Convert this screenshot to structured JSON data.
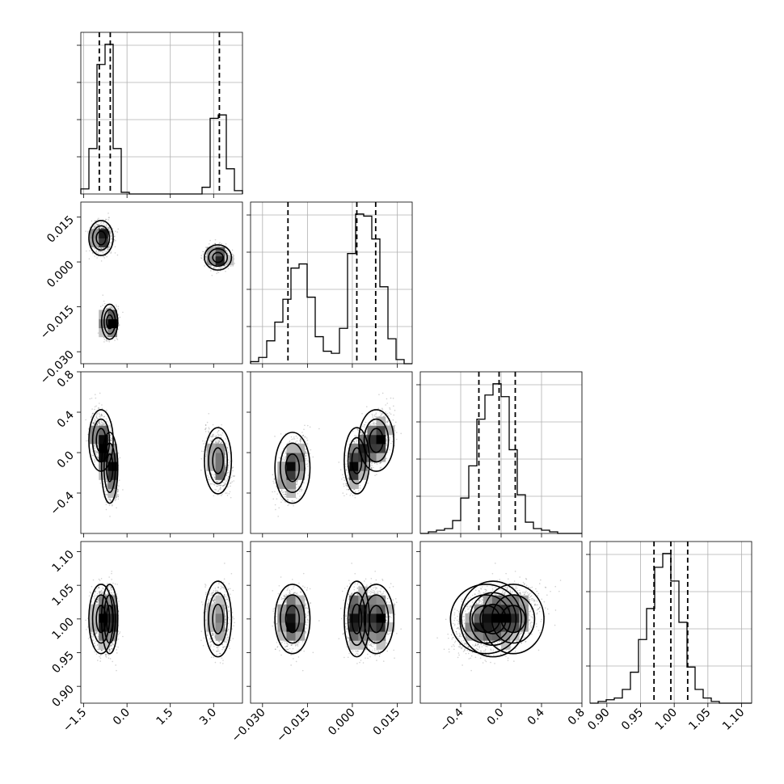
{
  "chart_data": {
    "type": "corner",
    "parameters": 4,
    "axes": [
      {
        "range": [
          -1.6,
          4.0
        ],
        "ticks": [
          -1.5,
          0.0,
          1.5,
          3.0
        ],
        "tick_labels": [
          "−1.5",
          "0.0",
          "1.5",
          "3.0"
        ]
      },
      {
        "range": [
          -0.034,
          0.02
        ],
        "ticks": [
          -0.03,
          -0.015,
          0.0,
          0.015
        ],
        "tick_labels": [
          "−0.030",
          "−0.015",
          "0.000",
          "0.015"
        ]
      },
      {
        "range": [
          -0.8,
          0.8
        ],
        "ticks": [
          -0.4,
          0.0,
          0.4,
          0.8
        ],
        "tick_labels": [
          "−0.4",
          "0.0",
          "0.4",
          "0.8"
        ]
      },
      {
        "range": [
          0.875,
          1.115
        ],
        "ticks": [
          0.9,
          0.95,
          1.0,
          1.05,
          1.1
        ],
        "tick_labels": [
          "0.90",
          "0.95",
          "1.00",
          "1.05",
          "1.10"
        ]
      }
    ],
    "histograms": [
      {
        "edges": [
          -1.6,
          -1.32,
          -1.04,
          -0.76,
          -0.48,
          -0.2,
          0.08,
          0.36,
          0.64,
          0.92,
          1.2,
          1.48,
          1.76,
          2.04,
          2.32,
          2.6,
          2.88,
          3.16,
          3.44,
          3.72,
          4.0
        ],
        "counts": [
          0.03,
          0.27,
          0.77,
          0.89,
          0.27,
          0.01,
          0.0,
          0.0,
          0.0,
          0.0,
          0.0,
          0.0,
          0.0,
          0.0,
          0.0,
          0.04,
          0.45,
          0.47,
          0.15,
          0.02
        ],
        "quantiles": [
          -0.96,
          -0.58,
          3.2
        ]
      },
      {
        "edges": [
          -0.034,
          -0.0313,
          -0.0286,
          -0.0259,
          -0.0232,
          -0.0205,
          -0.0178,
          -0.0151,
          -0.0124,
          -0.0097,
          -0.007,
          -0.0043,
          -0.0016,
          0.0011,
          0.0038,
          0.0065,
          0.0092,
          0.0119,
          0.0146,
          0.0173,
          0.02
        ],
        "counts": [
          0.01,
          0.03,
          0.11,
          0.2,
          0.31,
          0.46,
          0.48,
          0.32,
          0.13,
          0.06,
          0.05,
          0.17,
          0.53,
          0.72,
          0.71,
          0.6,
          0.37,
          0.12,
          0.02,
          0.0
        ],
        "quantiles": [
          -0.0215,
          0.0015,
          0.0078
        ]
      },
      {
        "edges": [
          -0.8,
          -0.72,
          -0.64,
          -0.56,
          -0.48,
          -0.4,
          -0.32,
          -0.24,
          -0.16,
          -0.08,
          0.0,
          0.08,
          0.16,
          0.24,
          0.32,
          0.4,
          0.48,
          0.56,
          0.64,
          0.72,
          0.8
        ],
        "counts": [
          0.0,
          0.01,
          0.02,
          0.03,
          0.08,
          0.22,
          0.42,
          0.71,
          0.86,
          0.93,
          0.85,
          0.52,
          0.24,
          0.07,
          0.03,
          0.02,
          0.01,
          0.0,
          0.0,
          0.0
        ],
        "quantiles": [
          -0.22,
          -0.02,
          0.14
        ]
      },
      {
        "edges": [
          0.875,
          0.887,
          0.899,
          0.911,
          0.923,
          0.935,
          0.947,
          0.959,
          0.971,
          0.983,
          0.995,
          1.007,
          1.019,
          1.031,
          1.043,
          1.055,
          1.067,
          1.079,
          1.091,
          1.103,
          1.115
        ],
        "counts": [
          0.0,
          0.01,
          0.02,
          0.03,
          0.08,
          0.18,
          0.37,
          0.55,
          0.79,
          0.87,
          0.71,
          0.47,
          0.21,
          0.08,
          0.03,
          0.01,
          0.0,
          0.0,
          0.0,
          0.0
        ],
        "quantiles": [
          0.97,
          0.995,
          1.02
        ]
      }
    ],
    "clusters": [
      {
        "center": [
          -0.9,
          0.008,
          0.12,
          1.0
        ],
        "sd": [
          0.18,
          0.0025,
          0.13,
          0.022
        ],
        "weight": 0.35
      },
      {
        "center": [
          -0.6,
          -0.02,
          -0.15,
          1.0
        ],
        "sd": [
          0.12,
          0.0025,
          0.15,
          0.022
        ],
        "weight": 0.35
      },
      {
        "center": [
          3.15,
          0.0015,
          -0.08,
          1.0
        ],
        "sd": [
          0.2,
          0.0018,
          0.14,
          0.024
        ],
        "weight": 0.3
      }
    ]
  }
}
